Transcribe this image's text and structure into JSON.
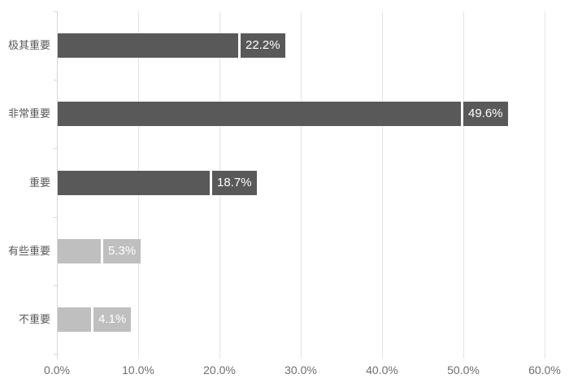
{
  "chart_data": {
    "type": "bar",
    "orientation": "horizontal",
    "title": "",
    "categories": [
      "极其重要",
      "非常重要",
      "重要",
      "有些重要",
      "不重要"
    ],
    "values": [
      22.2,
      49.6,
      18.7,
      5.3,
      4.1
    ],
    "value_labels": [
      "22.2%",
      "49.6%",
      "18.7%",
      "5.3%",
      "4.1%"
    ],
    "bar_colors": [
      "#595959",
      "#595959",
      "#595959",
      "#bfbfbf",
      "#bfbfbf"
    ],
    "x_tick_labels": [
      "0.0%",
      "10.0%",
      "20.0%",
      "30.0%",
      "40.0%",
      "50.0%",
      "60.0%"
    ],
    "x_tick_values": [
      0,
      10,
      20,
      30,
      40,
      50,
      60
    ],
    "xlim": [
      0,
      60
    ],
    "grid": "vertical-gridlines-on",
    "legend": "none"
  },
  "colors": {
    "dark_bar": "#595959",
    "light_bar": "#bfbfbf",
    "value_text": "#ffffff",
    "gridline": "#e4e4e4",
    "axis_line": "#d6d6d6",
    "category_label_text": "#595959",
    "tick_label_text": "#6e6e6e",
    "background": "#ffffff"
  }
}
